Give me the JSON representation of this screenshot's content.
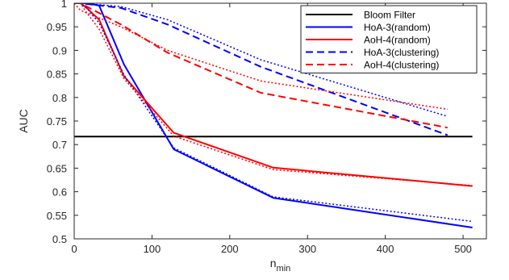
{
  "chart_data": {
    "type": "line",
    "xlabel": "n",
    "xlabel_subscript": "min",
    "ylabel": "AUC",
    "xlim": [
      0,
      530
    ],
    "ylim": [
      0.5,
      1.0
    ],
    "xticks": [
      0,
      100,
      200,
      300,
      400,
      500
    ],
    "yticks": [
      0.5,
      0.55,
      0.6,
      0.65,
      0.7,
      0.75,
      0.8,
      0.85,
      0.9,
      0.95,
      1
    ],
    "ytick_labels": [
      "0.5",
      "0.55",
      "0.6",
      "0.65",
      "0.7",
      "0.75",
      "0.8",
      "0.85",
      "0.9",
      "0.95",
      "1"
    ],
    "grid": false,
    "legend_position": "top-right",
    "series": [
      {
        "name": "Bloom Filter",
        "color": "#000000",
        "dash": "solid",
        "in_legend": true,
        "x": [
          0,
          512
        ],
        "y": [
          0.717,
          0.717
        ]
      },
      {
        "name": "HoA-3(random)",
        "color": "#0000ff",
        "dash": "solid",
        "in_legend": true,
        "x": [
          2,
          4,
          8,
          16,
          32,
          64,
          128,
          256,
          512
        ],
        "y": [
          1.0,
          1.0,
          1.0,
          1.0,
          0.995,
          0.87,
          0.69,
          0.587,
          0.524
        ]
      },
      {
        "name": "AoH-4(random)",
        "color": "#ff0000",
        "dash": "solid",
        "in_legend": true,
        "x": [
          2,
          4,
          8,
          16,
          32,
          64,
          128,
          256,
          512
        ],
        "y": [
          1.0,
          1.0,
          1.0,
          0.99,
          0.965,
          0.845,
          0.725,
          0.651,
          0.612
        ]
      },
      {
        "name": "HoA-3(clustering)",
        "color": "#0000ff",
        "dash": "dashed",
        "in_legend": true,
        "x": [
          0,
          8,
          60,
          120,
          240,
          480
        ],
        "y": [
          1.0,
          1.0,
          0.99,
          0.955,
          0.865,
          0.72
        ]
      },
      {
        "name": "AoH-4(clustering)",
        "color": "#ff0000",
        "dash": "dashed",
        "in_legend": true,
        "x": [
          0,
          8,
          60,
          120,
          240,
          480
        ],
        "y": [
          1.0,
          1.0,
          0.955,
          0.895,
          0.81,
          0.736
        ]
      },
      {
        "color": "#0000ff",
        "dash": "dotted",
        "in_legend": false,
        "x": [
          2,
          4,
          8,
          16,
          32,
          64,
          128,
          256,
          512
        ],
        "y": [
          1.0,
          1.0,
          1.0,
          0.99,
          0.958,
          0.848,
          0.693,
          0.589,
          0.537
        ]
      },
      {
        "color": "#ff0000",
        "dash": "dotted",
        "in_legend": false,
        "x": [
          2,
          4,
          8,
          16,
          32,
          64,
          128,
          256,
          512
        ],
        "y": [
          1.0,
          1.0,
          1.0,
          0.98,
          0.945,
          0.84,
          0.718,
          0.647,
          0.613
        ]
      },
      {
        "color": "#0000ff",
        "dash": "dotted",
        "in_legend": false,
        "x": [
          0,
          8,
          60,
          120,
          240,
          480
        ],
        "y": [
          1.0,
          1.0,
          0.993,
          0.965,
          0.88,
          0.76
        ]
      },
      {
        "color": "#ff0000",
        "dash": "dotted",
        "in_legend": false,
        "x": [
          0,
          8,
          60,
          120,
          240,
          480
        ],
        "y": [
          1.0,
          0.985,
          0.95,
          0.9,
          0.835,
          0.775
        ]
      }
    ]
  }
}
